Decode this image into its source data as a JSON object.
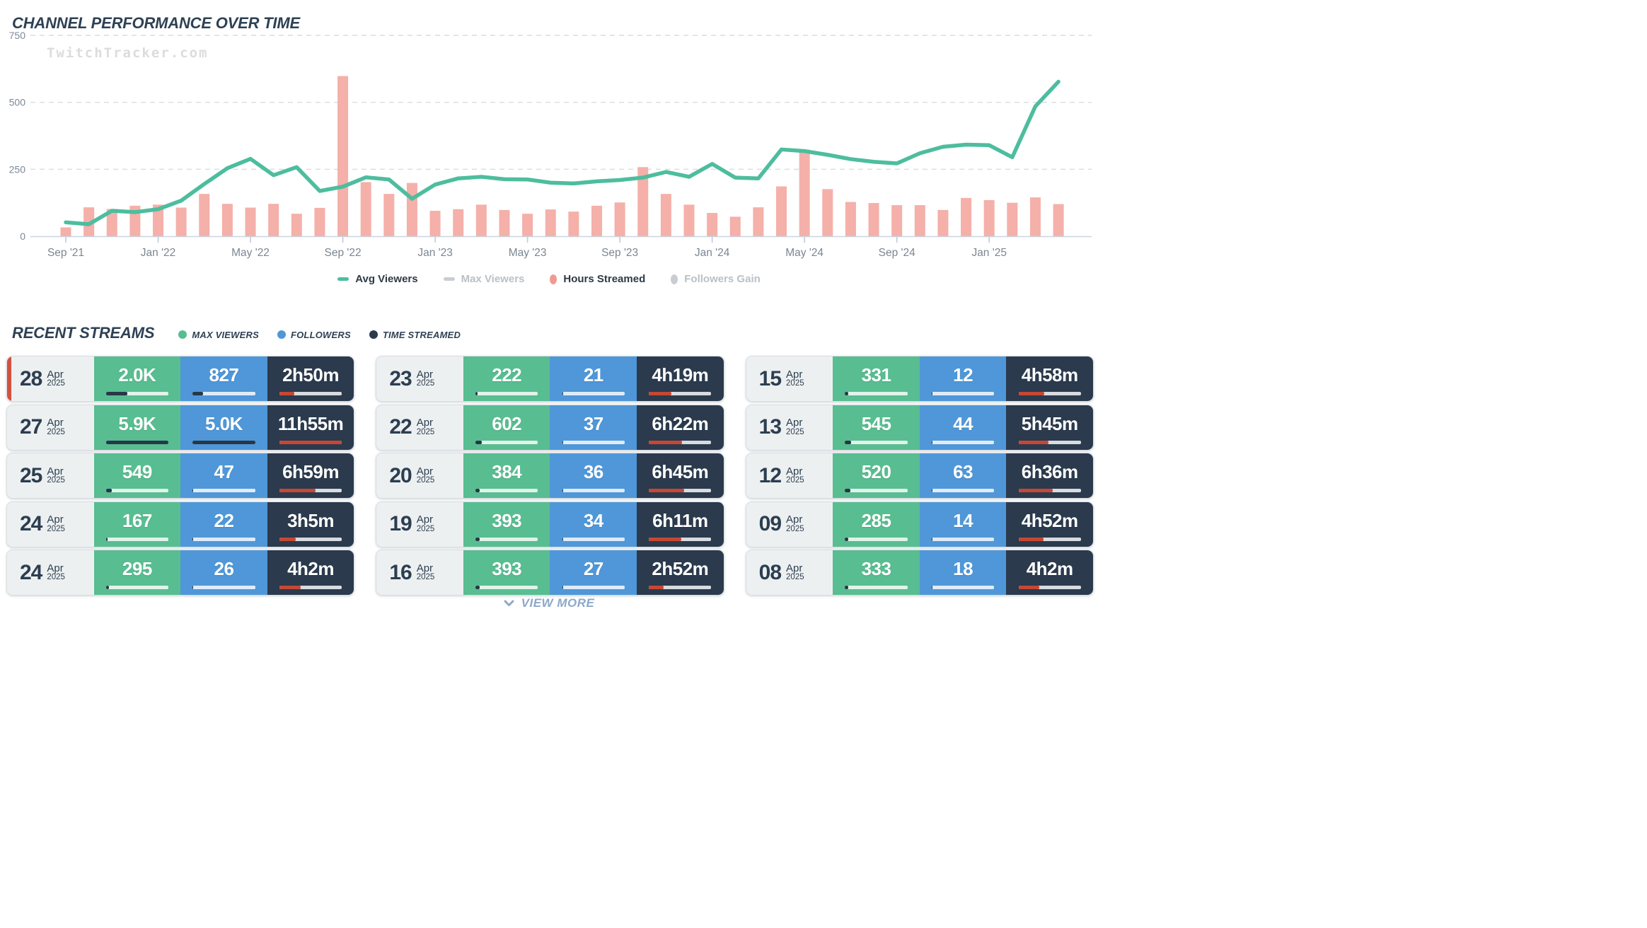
{
  "page": {
    "title": "CHANNEL PERFORMANCE OVER TIME",
    "watermark": "TwitchTracker.com"
  },
  "chart_legend": [
    {
      "label": "Avg Viewers",
      "shape": "dash",
      "color": "#4dbd9e",
      "active": true
    },
    {
      "label": "Max Viewers",
      "shape": "dash",
      "color": "#c9cdd1",
      "active": false
    },
    {
      "label": "Hours Streamed",
      "shape": "ellipse",
      "color": "#f19a91",
      "active": true
    },
    {
      "label": "Followers Gain",
      "shape": "ellipse",
      "color": "#c9cdd1",
      "active": false
    }
  ],
  "chart_data": {
    "type": "line+bar",
    "title": "CHANNEL PERFORMANCE OVER TIME",
    "x": [
      "Sep '21",
      "Oct '21",
      "Nov '21",
      "Dec '21",
      "Jan '22",
      "Feb '22",
      "Mar '22",
      "Apr '22",
      "May '22",
      "Jun '22",
      "Jul '22",
      "Aug '22",
      "Sep '22",
      "Oct '22",
      "Nov '22",
      "Dec '22",
      "Jan '23",
      "Feb '23",
      "Mar '23",
      "Apr '23",
      "May '23",
      "Jun '23",
      "Jul '23",
      "Aug '23",
      "Sep '23",
      "Oct '23",
      "Nov '23",
      "Dec '23",
      "Jan '24",
      "Feb '24",
      "Mar '24",
      "Apr '24",
      "May '24",
      "Jun '24",
      "Jul '24",
      "Aug '24",
      "Sep '24",
      "Oct '24",
      "Nov '24",
      "Dec '24",
      "Jan '25",
      "Feb '25",
      "Mar '25",
      "Apr '25"
    ],
    "series": [
      {
        "name": "Avg Viewers",
        "type": "line",
        "color": "#4dbd9e",
        "values": [
          52,
          45,
          95,
          90,
          101,
          133,
          195,
          254,
          289,
          228,
          258,
          169,
          185,
          220,
          212,
          140,
          193,
          216,
          222,
          213,
          212,
          200,
          197,
          205,
          210,
          219,
          240,
          222,
          270,
          219,
          216,
          324,
          318,
          304,
          288,
          278,
          272,
          310,
          334,
          342,
          340,
          295,
          485,
          577
        ]
      },
      {
        "name": "Hours Streamed",
        "type": "bar",
        "color": "#f4b0a9",
        "values": [
          33,
          108,
          102,
          114,
          118,
          107,
          158,
          121,
          107,
          121,
          84,
          106,
          598,
          202,
          158,
          199,
          95,
          101,
          118,
          98,
          84,
          100,
          92,
          114,
          126,
          258,
          158,
          118,
          87,
          73,
          108,
          186,
          323,
          176,
          128,
          124,
          116,
          116,
          98,
          143,
          135,
          125,
          145,
          120
        ]
      }
    ],
    "x_tick_labels": [
      "Sep '21",
      "Jan '22",
      "May '22",
      "Sep '22",
      "Jan '23",
      "May '23",
      "Sep '23",
      "Jan '24",
      "May '24",
      "Sep '24",
      "Jan '25"
    ],
    "y_ticks": [
      "0",
      "250",
      "500",
      "750"
    ],
    "ylim": [
      0,
      750
    ],
    "grid": "horizontal dashed",
    "legend_position": "bottom"
  },
  "recent": {
    "title": "RECENT STREAMS",
    "legend": [
      {
        "label": "MAX VIEWERS",
        "color": "#58bd90"
      },
      {
        "label": "FOLLOWERS",
        "color": "#4f97d8"
      },
      {
        "label": "TIME STREAMED",
        "color": "#2b3a4d"
      }
    ],
    "view_more": "VIEW MORE"
  },
  "streams": [
    {
      "day": "28",
      "month": "Apr",
      "year": "2025",
      "max_viewers": "2.0K",
      "followers": "827",
      "time_streamed": "2h50m",
      "mv_fill": 34,
      "fo_fill": 16.5,
      "ts_fill": 23.6,
      "live": true
    },
    {
      "day": "27",
      "month": "Apr",
      "year": "2025",
      "max_viewers": "5.9K",
      "followers": "5.0K",
      "time_streamed": "11h55m",
      "mv_fill": 100,
      "fo_fill": 100,
      "ts_fill": 99.3,
      "live": false
    },
    {
      "day": "25",
      "month": "Apr",
      "year": "2025",
      "max_viewers": "549",
      "followers": "47",
      "time_streamed": "6h59m",
      "mv_fill": 9.3,
      "fo_fill": 0.9,
      "ts_fill": 58.2,
      "live": false
    },
    {
      "day": "24",
      "month": "Apr",
      "year": "2025",
      "max_viewers": "167",
      "followers": "22",
      "time_streamed": "3h5m",
      "mv_fill": 2.8,
      "fo_fill": 0.4,
      "ts_fill": 25.7,
      "live": false
    },
    {
      "day": "24",
      "month": "Apr",
      "year": "2025",
      "max_viewers": "295",
      "followers": "26",
      "time_streamed": "4h2m",
      "mv_fill": 5.0,
      "fo_fill": 0.5,
      "ts_fill": 33.6,
      "live": false
    },
    {
      "day": "23",
      "month": "Apr",
      "year": "2025",
      "max_viewers": "222",
      "followers": "21",
      "time_streamed": "4h19m",
      "mv_fill": 3.8,
      "fo_fill": 0.4,
      "ts_fill": 36.0,
      "live": false
    },
    {
      "day": "22",
      "month": "Apr",
      "year": "2025",
      "max_viewers": "602",
      "followers": "37",
      "time_streamed": "6h22m",
      "mv_fill": 10.2,
      "fo_fill": 0.7,
      "ts_fill": 53.1,
      "live": false
    },
    {
      "day": "20",
      "month": "Apr",
      "year": "2025",
      "max_viewers": "384",
      "followers": "36",
      "time_streamed": "6h45m",
      "mv_fill": 6.5,
      "fo_fill": 0.7,
      "ts_fill": 56.3,
      "live": false
    },
    {
      "day": "19",
      "month": "Apr",
      "year": "2025",
      "max_viewers": "393",
      "followers": "34",
      "time_streamed": "6h11m",
      "mv_fill": 6.7,
      "fo_fill": 0.7,
      "ts_fill": 51.5,
      "live": false
    },
    {
      "day": "16",
      "month": "Apr",
      "year": "2025",
      "max_viewers": "393",
      "followers": "27",
      "time_streamed": "2h52m",
      "mv_fill": 6.7,
      "fo_fill": 0.5,
      "ts_fill": 23.9,
      "live": false
    },
    {
      "day": "15",
      "month": "Apr",
      "year": "2025",
      "max_viewers": "331",
      "followers": "12",
      "time_streamed": "4h58m",
      "mv_fill": 5.6,
      "fo_fill": 0.2,
      "ts_fill": 41.4,
      "live": false
    },
    {
      "day": "13",
      "month": "Apr",
      "year": "2025",
      "max_viewers": "545",
      "followers": "44",
      "time_streamed": "5h45m",
      "mv_fill": 9.2,
      "fo_fill": 0.9,
      "ts_fill": 47.9,
      "live": false
    },
    {
      "day": "12",
      "month": "Apr",
      "year": "2025",
      "max_viewers": "520",
      "followers": "63",
      "time_streamed": "6h36m",
      "mv_fill": 8.8,
      "fo_fill": 1.3,
      "ts_fill": 55.0,
      "live": false
    },
    {
      "day": "09",
      "month": "Apr",
      "year": "2025",
      "max_viewers": "285",
      "followers": "14",
      "time_streamed": "4h52m",
      "mv_fill": 4.8,
      "fo_fill": 0.3,
      "ts_fill": 40.6,
      "live": false
    },
    {
      "day": "08",
      "month": "Apr",
      "year": "2025",
      "max_viewers": "333",
      "followers": "18",
      "time_streamed": "4h2m",
      "mv_fill": 5.6,
      "fo_fill": 0.4,
      "ts_fill": 33.6,
      "live": false
    }
  ]
}
